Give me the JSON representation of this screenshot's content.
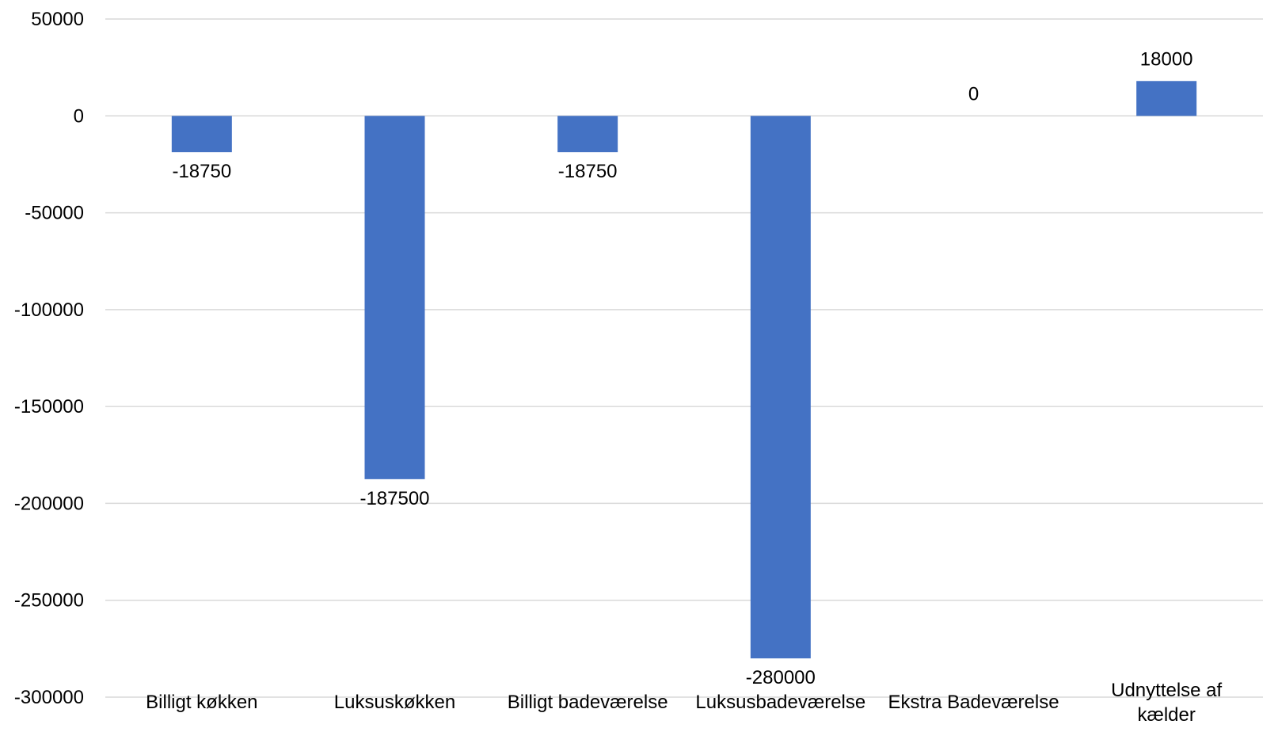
{
  "chart_data": {
    "type": "bar",
    "categories": [
      [
        "Billigt køkken"
      ],
      [
        "Luksuskøkken"
      ],
      [
        "Billigt badeværelse"
      ],
      [
        "Luksusbadeværelse"
      ],
      [
        "Ekstra Badeværelse"
      ],
      [
        "Udnyttelse af",
        "kælder"
      ]
    ],
    "values": [
      -18750,
      -187500,
      -18750,
      -280000,
      0,
      18000
    ],
    "data_labels": [
      "-18750",
      "-187500",
      "-18750",
      "-280000",
      "0",
      "18000"
    ],
    "y_ticks": [
      50000,
      0,
      -50000,
      -100000,
      -150000,
      -200000,
      -250000,
      -300000
    ],
    "y_tick_labels": [
      "50000",
      "0",
      "-50000",
      "-100000",
      "-150000",
      "-200000",
      "-250000",
      "-300000"
    ],
    "ylim": [
      -300000,
      50000
    ],
    "grid": true,
    "legend": "none",
    "colors": {
      "bar": "#4472C4",
      "grid": "#D9D9D9",
      "text": "#000000"
    },
    "title": "",
    "xlabel": "",
    "ylabel": ""
  }
}
